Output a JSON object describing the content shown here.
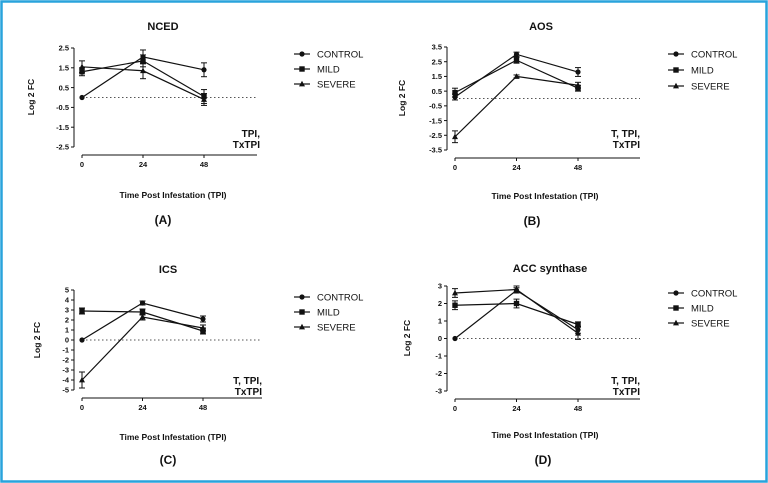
{
  "colors": {
    "frame": "#29a3dc",
    "line": "#111111",
    "zero_line": "#555555"
  },
  "chart_data": [
    {
      "type": "line",
      "title": "NCED",
      "xlabel": "Time Post Infestation (TPI)",
      "ylabel": "Log 2 FC",
      "panel_label": "(A)",
      "x": [
        0,
        24,
        48
      ],
      "x_ticks": [
        "0",
        "24",
        "48"
      ],
      "y_ticks": [
        "2.5",
        "1.5",
        "0.5",
        "-0.5",
        "-1.5",
        "-2.5"
      ],
      "ylim": [
        -2.5,
        2.5
      ],
      "stat_lines": [
        "TPI,",
        "TxTPI"
      ],
      "series": [
        {
          "name": "CONTROL",
          "marker": "circle",
          "values": [
            0,
            2.05,
            1.4
          ],
          "errors": [
            0,
            0.35,
            0.35
          ]
        },
        {
          "name": "MILD",
          "marker": "square",
          "values": [
            1.3,
            1.85,
            0.05
          ],
          "errors": [
            0.2,
            0.3,
            0.35
          ]
        },
        {
          "name": "SEVERE",
          "marker": "triangle",
          "values": [
            1.55,
            1.35,
            -0.1
          ],
          "errors": [
            0.3,
            0.4,
            0.3
          ]
        }
      ]
    },
    {
      "type": "line",
      "title": "AOS",
      "xlabel": "Time Post Infestation (TPI)",
      "ylabel": "Log 2 FC",
      "panel_label": "(B)",
      "x": [
        0,
        24,
        48
      ],
      "x_ticks": [
        "0",
        "24",
        "48"
      ],
      "y_ticks": [
        "3.5",
        "2.5",
        "1.5",
        "0.5",
        "-0.5",
        "-1.5",
        "-2.5",
        "-3.5"
      ],
      "ylim": [
        -3.5,
        3.5
      ],
      "stat_lines": [
        "T, TPI,",
        "TxTPI"
      ],
      "series": [
        {
          "name": "CONTROL",
          "marker": "circle",
          "values": [
            0.1,
            3.0,
            1.8
          ],
          "errors": [
            0.2,
            0.15,
            0.3
          ]
        },
        {
          "name": "MILD",
          "marker": "square",
          "values": [
            0.4,
            2.6,
            0.7
          ],
          "errors": [
            0.3,
            0.2,
            0.2
          ]
        },
        {
          "name": "SEVERE",
          "marker": "triangle",
          "values": [
            -2.6,
            1.5,
            0.9
          ],
          "errors": [
            0.4,
            0.1,
            0.2
          ]
        }
      ]
    },
    {
      "type": "line",
      "title": "ICS",
      "xlabel": "Time Post Infestation (TPI)",
      "ylabel": "Log 2 FC",
      "panel_label": "(C)",
      "x": [
        0,
        24,
        48
      ],
      "x_ticks": [
        "0",
        "24",
        "48"
      ],
      "y_ticks": [
        "5",
        "4",
        "3",
        "2",
        "1",
        "0",
        "-1",
        "-2",
        "-3",
        "-4",
        "-5"
      ],
      "ylim": [
        -5,
        5
      ],
      "stat_lines": [
        "T, TPI,",
        "TxTPI"
      ],
      "series": [
        {
          "name": "CONTROL",
          "marker": "circle",
          "values": [
            0,
            3.7,
            2.1
          ],
          "errors": [
            0,
            0.2,
            0.3
          ]
        },
        {
          "name": "MILD",
          "marker": "square",
          "values": [
            2.9,
            2.8,
            0.9
          ],
          "errors": [
            0.3,
            0.3,
            0.3
          ]
        },
        {
          "name": "SEVERE",
          "marker": "triangle",
          "values": [
            -4.0,
            2.3,
            1.2
          ],
          "errors": [
            0.8,
            0.3,
            0.3
          ]
        }
      ]
    },
    {
      "type": "line",
      "title": "ACC synthase",
      "xlabel": "Time Post Infestation (TPI)",
      "ylabel": "Log 2 FC",
      "panel_label": "(D)",
      "x": [
        0,
        24,
        48
      ],
      "x_ticks": [
        "0",
        "24",
        "48"
      ],
      "y_ticks": [
        "3",
        "2",
        "1",
        "0",
        "-1",
        "-2",
        "-3"
      ],
      "ylim": [
        -3,
        3
      ],
      "stat_lines": [
        "T, TPI,",
        "TxTPI"
      ],
      "series": [
        {
          "name": "CONTROL",
          "marker": "circle",
          "values": [
            0,
            2.75,
            0.5
          ],
          "errors": [
            0,
            0.15,
            0.2
          ]
        },
        {
          "name": "MILD",
          "marker": "square",
          "values": [
            1.9,
            2.0,
            0.8
          ],
          "errors": [
            0.25,
            0.25,
            0.15
          ]
        },
        {
          "name": "SEVERE",
          "marker": "triangle",
          "values": [
            2.6,
            2.8,
            0.3
          ],
          "errors": [
            0.25,
            0.2,
            0.35
          ]
        }
      ]
    }
  ]
}
